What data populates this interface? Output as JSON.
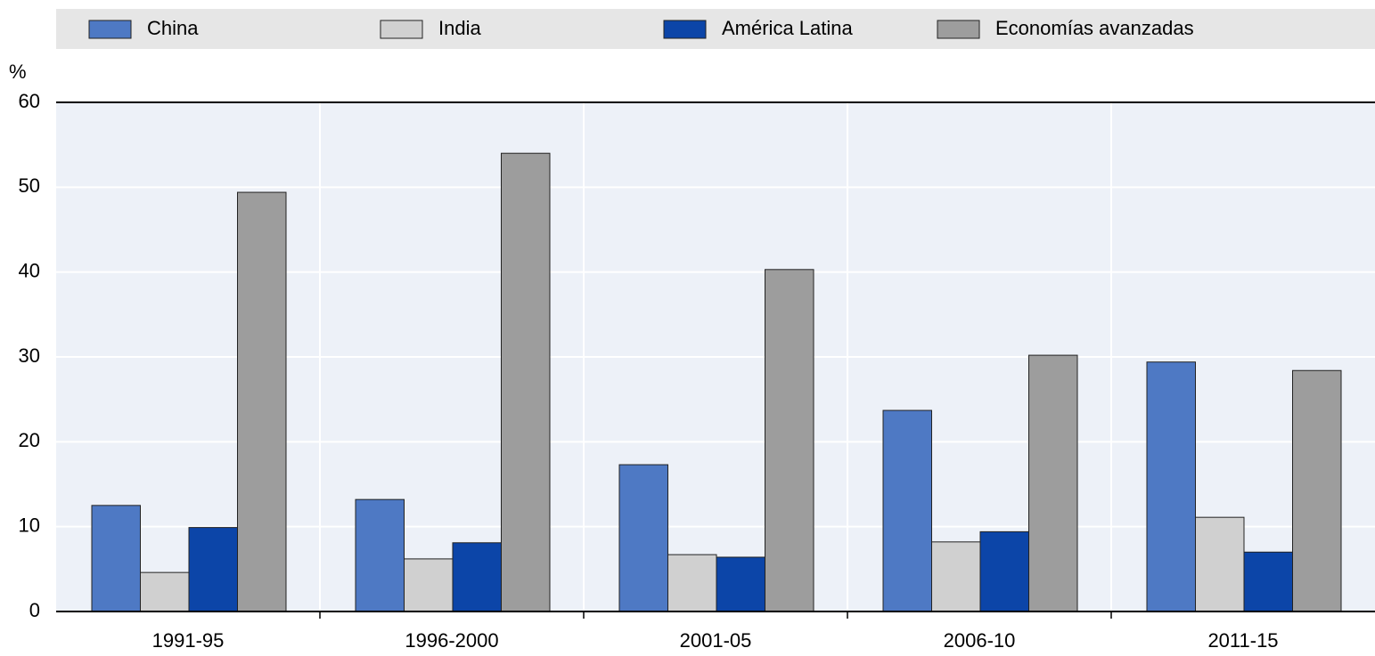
{
  "chart_data": {
    "type": "bar",
    "y_label": "%",
    "categories": [
      "1991-95",
      "1996-2000",
      "2001-05",
      "2006-10",
      "2011-15"
    ],
    "series": [
      {
        "name": "China",
        "color": "#4e79c4",
        "values": [
          12.5,
          13.2,
          17.3,
          23.7,
          29.4
        ]
      },
      {
        "name": "India",
        "color": "#d0d0d0",
        "values": [
          4.6,
          6.2,
          6.7,
          8.2,
          11.1
        ]
      },
      {
        "name": "América Latina",
        "color": "#0c45a8",
        "values": [
          9.9,
          8.1,
          6.4,
          9.4,
          7.0
        ]
      },
      {
        "name": "Economías avanzadas",
        "color": "#9d9d9d",
        "values": [
          49.4,
          54.0,
          40.3,
          30.2,
          28.4
        ]
      }
    ],
    "ylim": [
      0,
      60
    ],
    "yticks": [
      0,
      10,
      20,
      30,
      40,
      50,
      60
    ],
    "grid": true
  }
}
